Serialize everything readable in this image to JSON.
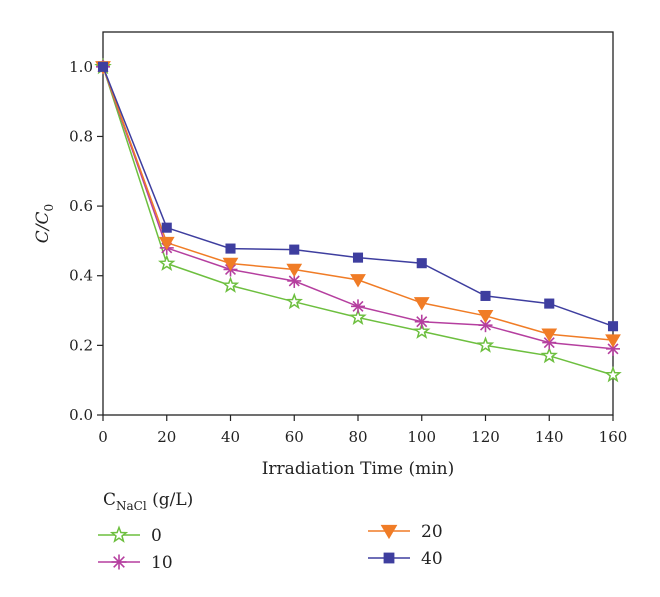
{
  "chart_data": {
    "type": "line",
    "xlabel": "Irradiation Time (min)",
    "ylabel_main": "C/C",
    "ylabel_sub": "0",
    "xlim": [
      0,
      160
    ],
    "ylim": [
      0,
      1.1
    ],
    "x_ticks": [
      "0",
      "20",
      "40",
      "60",
      "80",
      "100",
      "120",
      "140",
      "160"
    ],
    "y_ticks": [
      "0.0",
      "0.2",
      "0.4",
      "0.6",
      "0.8",
      "1.0"
    ],
    "grid": false,
    "legend": {
      "position": "bottom",
      "title_main": "C",
      "title_sub": "NaCl",
      "title_unit": " (g/L)"
    },
    "x": [
      0,
      20,
      40,
      60,
      80,
      100,
      120,
      140,
      160
    ],
    "series": [
      {
        "name": "0",
        "color": "#6dbf3f",
        "marker": "star-open",
        "values": [
          1.0,
          0.435,
          0.372,
          0.325,
          0.28,
          0.24,
          0.2,
          0.17,
          0.115
        ]
      },
      {
        "name": "10",
        "color": "#b53f9f",
        "marker": "asterisk",
        "values": [
          1.0,
          0.48,
          0.418,
          0.385,
          0.312,
          0.268,
          0.258,
          0.208,
          0.19
        ]
      },
      {
        "name": "20",
        "color": "#f07c26",
        "marker": "triangle-down",
        "values": [
          1.0,
          0.495,
          0.435,
          0.418,
          0.388,
          0.322,
          0.285,
          0.232,
          0.215
        ]
      },
      {
        "name": "40",
        "color": "#3e3e9f",
        "marker": "square",
        "values": [
          1.0,
          0.538,
          0.478,
          0.475,
          0.452,
          0.436,
          0.342,
          0.32,
          0.255
        ]
      }
    ]
  }
}
